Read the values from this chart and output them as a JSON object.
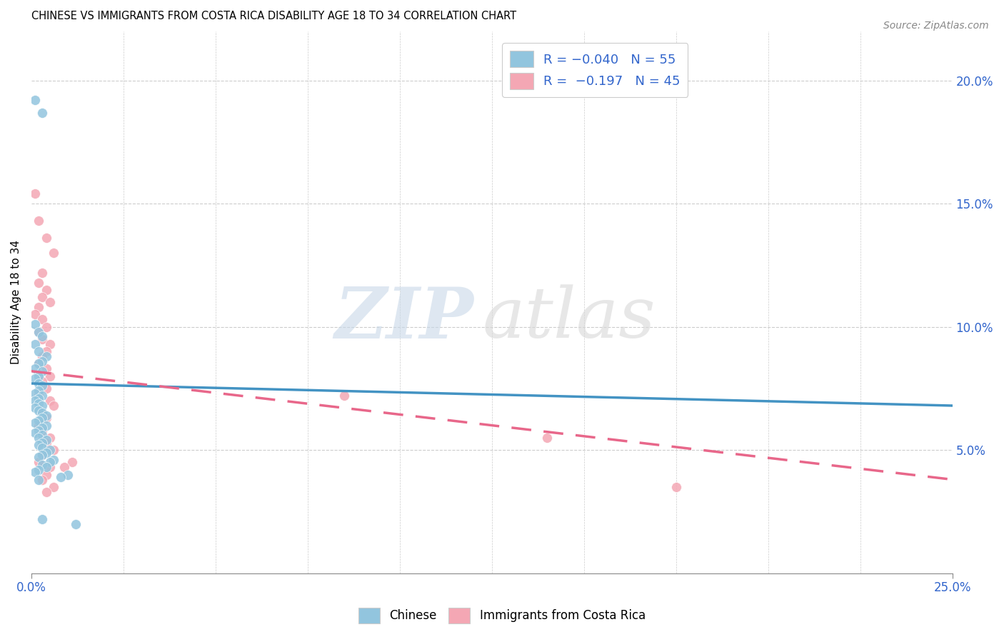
{
  "title": "CHINESE VS IMMIGRANTS FROM COSTA RICA DISABILITY AGE 18 TO 34 CORRELATION CHART",
  "source": "Source: ZipAtlas.com",
  "ylabel": "Disability Age 18 to 34",
  "right_yticks": [
    "5.0%",
    "10.0%",
    "15.0%",
    "20.0%"
  ],
  "right_ytick_vals": [
    0.05,
    0.1,
    0.15,
    0.2
  ],
  "xlim": [
    0.0,
    0.25
  ],
  "ylim": [
    0.0,
    0.22
  ],
  "blue_color": "#92c5de",
  "pink_color": "#f4a7b4",
  "blue_line_color": "#4393c3",
  "pink_line_color": "#e8678a",
  "grid_color": "#cccccc",
  "watermark_zip_color": "#c8d8e8",
  "watermark_atlas_color": "#d8d8d8",
  "chinese_x": [
    0.001,
    0.003,
    0.001,
    0.002,
    0.003,
    0.001,
    0.002,
    0.004,
    0.003,
    0.002,
    0.001,
    0.003,
    0.002,
    0.001,
    0.002,
    0.003,
    0.002,
    0.001,
    0.003,
    0.002,
    0.001,
    0.002,
    0.003,
    0.001,
    0.002,
    0.003,
    0.004,
    0.003,
    0.002,
    0.001,
    0.004,
    0.003,
    0.002,
    0.001,
    0.003,
    0.002,
    0.004,
    0.003,
    0.002,
    0.003,
    0.005,
    0.004,
    0.003,
    0.002,
    0.006,
    0.005,
    0.003,
    0.004,
    0.002,
    0.001,
    0.01,
    0.008,
    0.002,
    0.003,
    0.012
  ],
  "chinese_y": [
    0.192,
    0.187,
    0.101,
    0.098,
    0.096,
    0.093,
    0.09,
    0.088,
    0.086,
    0.085,
    0.083,
    0.082,
    0.08,
    0.079,
    0.077,
    0.076,
    0.074,
    0.073,
    0.072,
    0.071,
    0.07,
    0.069,
    0.068,
    0.067,
    0.066,
    0.065,
    0.064,
    0.063,
    0.062,
    0.061,
    0.06,
    0.059,
    0.058,
    0.057,
    0.056,
    0.055,
    0.054,
    0.053,
    0.052,
    0.051,
    0.05,
    0.049,
    0.048,
    0.047,
    0.046,
    0.045,
    0.044,
    0.043,
    0.042,
    0.041,
    0.04,
    0.039,
    0.038,
    0.022,
    0.02
  ],
  "costarica_x": [
    0.001,
    0.002,
    0.004,
    0.006,
    0.003,
    0.002,
    0.004,
    0.003,
    0.005,
    0.002,
    0.001,
    0.003,
    0.004,
    0.002,
    0.003,
    0.005,
    0.004,
    0.003,
    0.002,
    0.004,
    0.005,
    0.003,
    0.004,
    0.002,
    0.005,
    0.006,
    0.003,
    0.004,
    0.002,
    0.003,
    0.005,
    0.004,
    0.006,
    0.003,
    0.002,
    0.005,
    0.004,
    0.003,
    0.006,
    0.004,
    0.085,
    0.14,
    0.011,
    0.009,
    0.175
  ],
  "costarica_y": [
    0.154,
    0.143,
    0.136,
    0.13,
    0.122,
    0.118,
    0.115,
    0.112,
    0.11,
    0.108,
    0.105,
    0.103,
    0.1,
    0.098,
    0.095,
    0.093,
    0.09,
    0.088,
    0.085,
    0.083,
    0.08,
    0.078,
    0.075,
    0.073,
    0.07,
    0.068,
    0.065,
    0.063,
    0.06,
    0.058,
    0.055,
    0.053,
    0.05,
    0.048,
    0.045,
    0.043,
    0.04,
    0.038,
    0.035,
    0.033,
    0.072,
    0.055,
    0.045,
    0.043,
    0.035
  ],
  "blue_line_x0": 0.0,
  "blue_line_x1": 0.25,
  "blue_line_y0": 0.077,
  "blue_line_y1": 0.068,
  "pink_line_x0": 0.0,
  "pink_line_x1": 0.25,
  "pink_line_y0": 0.082,
  "pink_line_y1": 0.038
}
